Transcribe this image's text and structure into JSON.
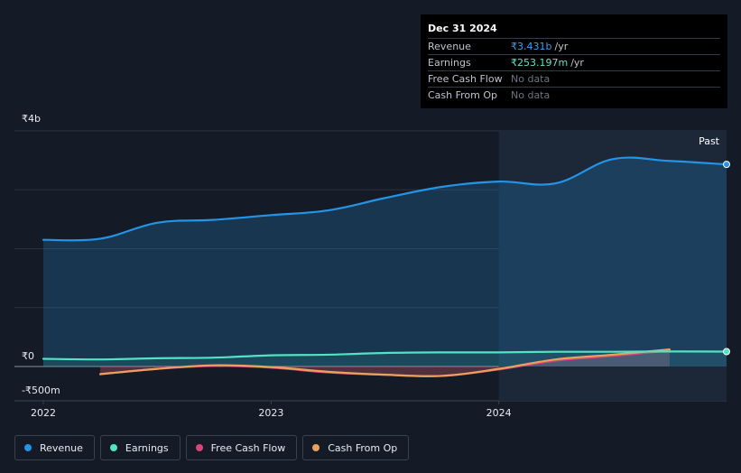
{
  "tooltip": {
    "date": "Dec 31 2024",
    "rows": [
      {
        "label": "Revenue",
        "value": "₹3.431b",
        "unit": "/yr"
      },
      {
        "label": "Earnings",
        "value": "₹253.197m",
        "unit": "/yr"
      },
      {
        "label": "Free Cash Flow",
        "value": "No data",
        "unit": ""
      },
      {
        "label": "Cash From Op",
        "value": "No data",
        "unit": ""
      }
    ]
  },
  "legend": [
    {
      "label": "Revenue",
      "color": "#2394e6"
    },
    {
      "label": "Earnings",
      "color": "#51e3c2"
    },
    {
      "label": "Free Cash Flow",
      "color": "#d4457d"
    },
    {
      "label": "Cash From Op",
      "color": "#e9a15e"
    }
  ],
  "chart_data": {
    "type": "line",
    "title": "",
    "xlabel": "",
    "ylabel": "",
    "ylim": [
      -500,
      4000
    ],
    "y_unit": "₹m",
    "ytick_labels": [
      {
        "value": 4000,
        "label": "₹4b"
      },
      {
        "value": 0,
        "label": "₹0"
      },
      {
        "value": -500,
        "label": "-₹500m"
      }
    ],
    "xtick_labels": [
      {
        "value": 2022.0,
        "label": "2022"
      },
      {
        "value": 2023.0,
        "label": "2023"
      },
      {
        "value": 2024.0,
        "label": "2024"
      }
    ],
    "past_label": "Past",
    "forecast_start": 2024.0,
    "series": [
      {
        "name": "Revenue",
        "color": "#2394e6",
        "x": [
          2022.0,
          2022.25,
          2022.5,
          2022.75,
          2023.0,
          2023.25,
          2023.5,
          2023.75,
          2024.0,
          2024.25,
          2024.5,
          2024.75,
          2025.0
        ],
        "values": [
          2150,
          2170,
          2440,
          2490,
          2570,
          2650,
          2860,
          3050,
          3140,
          3110,
          3520,
          3490,
          3431
        ]
      },
      {
        "name": "Earnings",
        "color": "#51e3c2",
        "x": [
          2022.0,
          2022.25,
          2022.5,
          2022.75,
          2023.0,
          2023.25,
          2023.5,
          2023.75,
          2024.0,
          2024.25,
          2024.5,
          2024.75,
          2025.0
        ],
        "values": [
          130,
          120,
          140,
          150,
          190,
          200,
          230,
          240,
          240,
          250,
          250,
          255,
          253
        ]
      },
      {
        "name": "Free Cash Flow",
        "color": "#d4457d",
        "x": [
          2022.25,
          2022.5,
          2022.75,
          2023.0,
          2023.25,
          2023.5,
          2023.75,
          2024.0,
          2024.25,
          2024.5,
          2024.75
        ],
        "values": [
          -130,
          -40,
          10,
          -20,
          -100,
          -140,
          -160,
          -50,
          100,
          180,
          270
        ]
      },
      {
        "name": "Cash From Op",
        "color": "#e9a15e",
        "x": [
          2022.25,
          2022.5,
          2022.75,
          2023.0,
          2023.25,
          2023.5,
          2023.75,
          2024.0,
          2024.25,
          2024.5,
          2024.75
        ],
        "values": [
          -130,
          -40,
          20,
          -10,
          -90,
          -140,
          -160,
          -40,
          120,
          200,
          290
        ]
      }
    ]
  }
}
